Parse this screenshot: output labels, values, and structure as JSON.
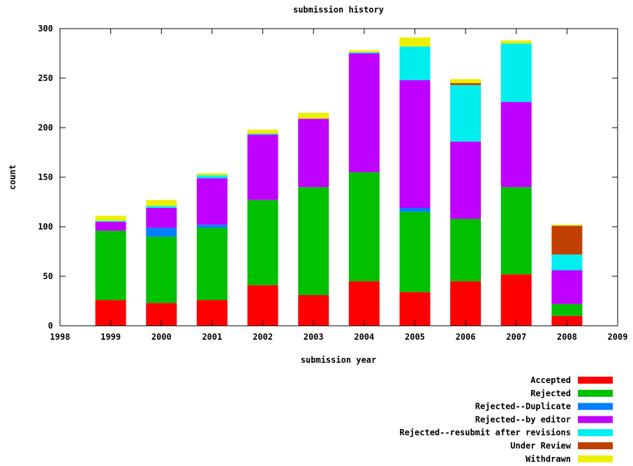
{
  "chart_data": {
    "type": "bar",
    "stacked": true,
    "title": "submission history",
    "xlabel": "submission year",
    "ylabel": "count",
    "xlim": [
      1998,
      2009
    ],
    "ylim": [
      0,
      300
    ],
    "x_ticks": [
      "1998",
      "1999",
      "2000",
      "2001",
      "2002",
      "2003",
      "2004",
      "2005",
      "2006",
      "2007",
      "2008",
      "2009"
    ],
    "y_ticks": [
      "0",
      "50",
      "100",
      "150",
      "200",
      "250",
      "300"
    ],
    "categories": [
      "1999",
      "2000",
      "2001",
      "2002",
      "2003",
      "2004",
      "2005",
      "2006",
      "2007",
      "2008"
    ],
    "legend_position": "below-right",
    "series": [
      {
        "name": "Accepted",
        "color": "#ff0000",
        "values": [
          26,
          23,
          26,
          41,
          31,
          45,
          34,
          45,
          52,
          10
        ]
      },
      {
        "name": "Rejected",
        "color": "#00c000",
        "values": [
          70,
          67,
          73,
          86,
          109,
          110,
          81,
          63,
          88,
          12
        ]
      },
      {
        "name": "Rejected--Duplicate",
        "color": "#0080ff",
        "values": [
          0,
          9,
          3,
          0,
          0,
          0,
          4,
          0,
          0,
          0
        ]
      },
      {
        "name": "Rejected--by editor",
        "color": "#c000ff",
        "values": [
          9,
          20,
          47,
          66,
          69,
          120,
          129,
          78,
          86,
          34
        ]
      },
      {
        "name": "Rejected--resubmit after revisions",
        "color": "#00eeee",
        "values": [
          1,
          2,
          3,
          1,
          0,
          1,
          34,
          57,
          59,
          16
        ]
      },
      {
        "name": "Under Review",
        "color": "#c04000",
        "values": [
          0,
          0,
          0,
          0,
          0,
          0,
          0,
          2,
          0,
          29
        ]
      },
      {
        "name": "Withdrawn",
        "color": "#eeee00",
        "values": [
          5,
          6,
          2,
          4,
          6,
          2,
          9,
          4,
          3,
          1
        ]
      }
    ]
  }
}
